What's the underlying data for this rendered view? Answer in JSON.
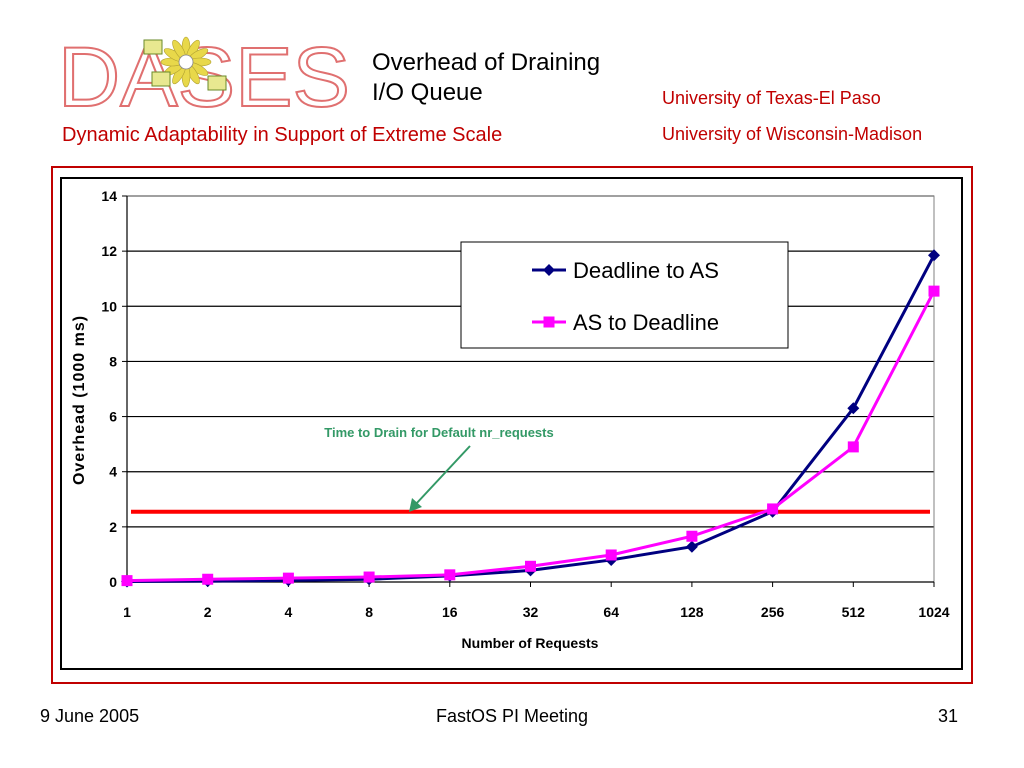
{
  "header": {
    "logo_text": "DASES",
    "title_line1": "Overhead of Draining",
    "title_line2": "I/O Queue",
    "subtitle": "Dynamic Adaptability in Support of Extreme Scale",
    "university1": "University of Texas-El Paso",
    "university2": "University of Wisconsin-Madison"
  },
  "footer": {
    "date": "9 June 2005",
    "meeting": "FastOS PI Meeting",
    "page": "31"
  },
  "colors": {
    "accent_red": "#c00000",
    "series1": "#000080",
    "series2": "#ff00ff",
    "threshold": "#ff0000",
    "annotation": "#339966"
  },
  "chart_data": {
    "type": "line",
    "title": "",
    "xlabel": "Number of Requests",
    "ylabel": "Overhead (1000 ms)",
    "categories": [
      "1",
      "2",
      "4",
      "8",
      "16",
      "32",
      "64",
      "128",
      "256",
      "512",
      "1024"
    ],
    "ylim": [
      0,
      14
    ],
    "yticks": [
      0,
      2,
      4,
      6,
      8,
      10,
      12,
      14
    ],
    "grid": true,
    "legend_position": "top-right",
    "series": [
      {
        "name": "Deadline to AS",
        "marker": "diamond",
        "color": "#000080",
        "values": [
          0.02,
          0.03,
          0.06,
          0.1,
          0.22,
          0.42,
          0.8,
          1.28,
          2.55,
          6.3,
          11.85
        ]
      },
      {
        "name": "AS to Deadline",
        "marker": "square",
        "color": "#ff00ff",
        "values": [
          0.05,
          0.1,
          0.14,
          0.18,
          0.26,
          0.57,
          0.98,
          1.66,
          2.65,
          4.9,
          10.55
        ]
      }
    ],
    "threshold": {
      "value": 2.55,
      "label": "Time to Drain for Default nr_requests"
    }
  }
}
